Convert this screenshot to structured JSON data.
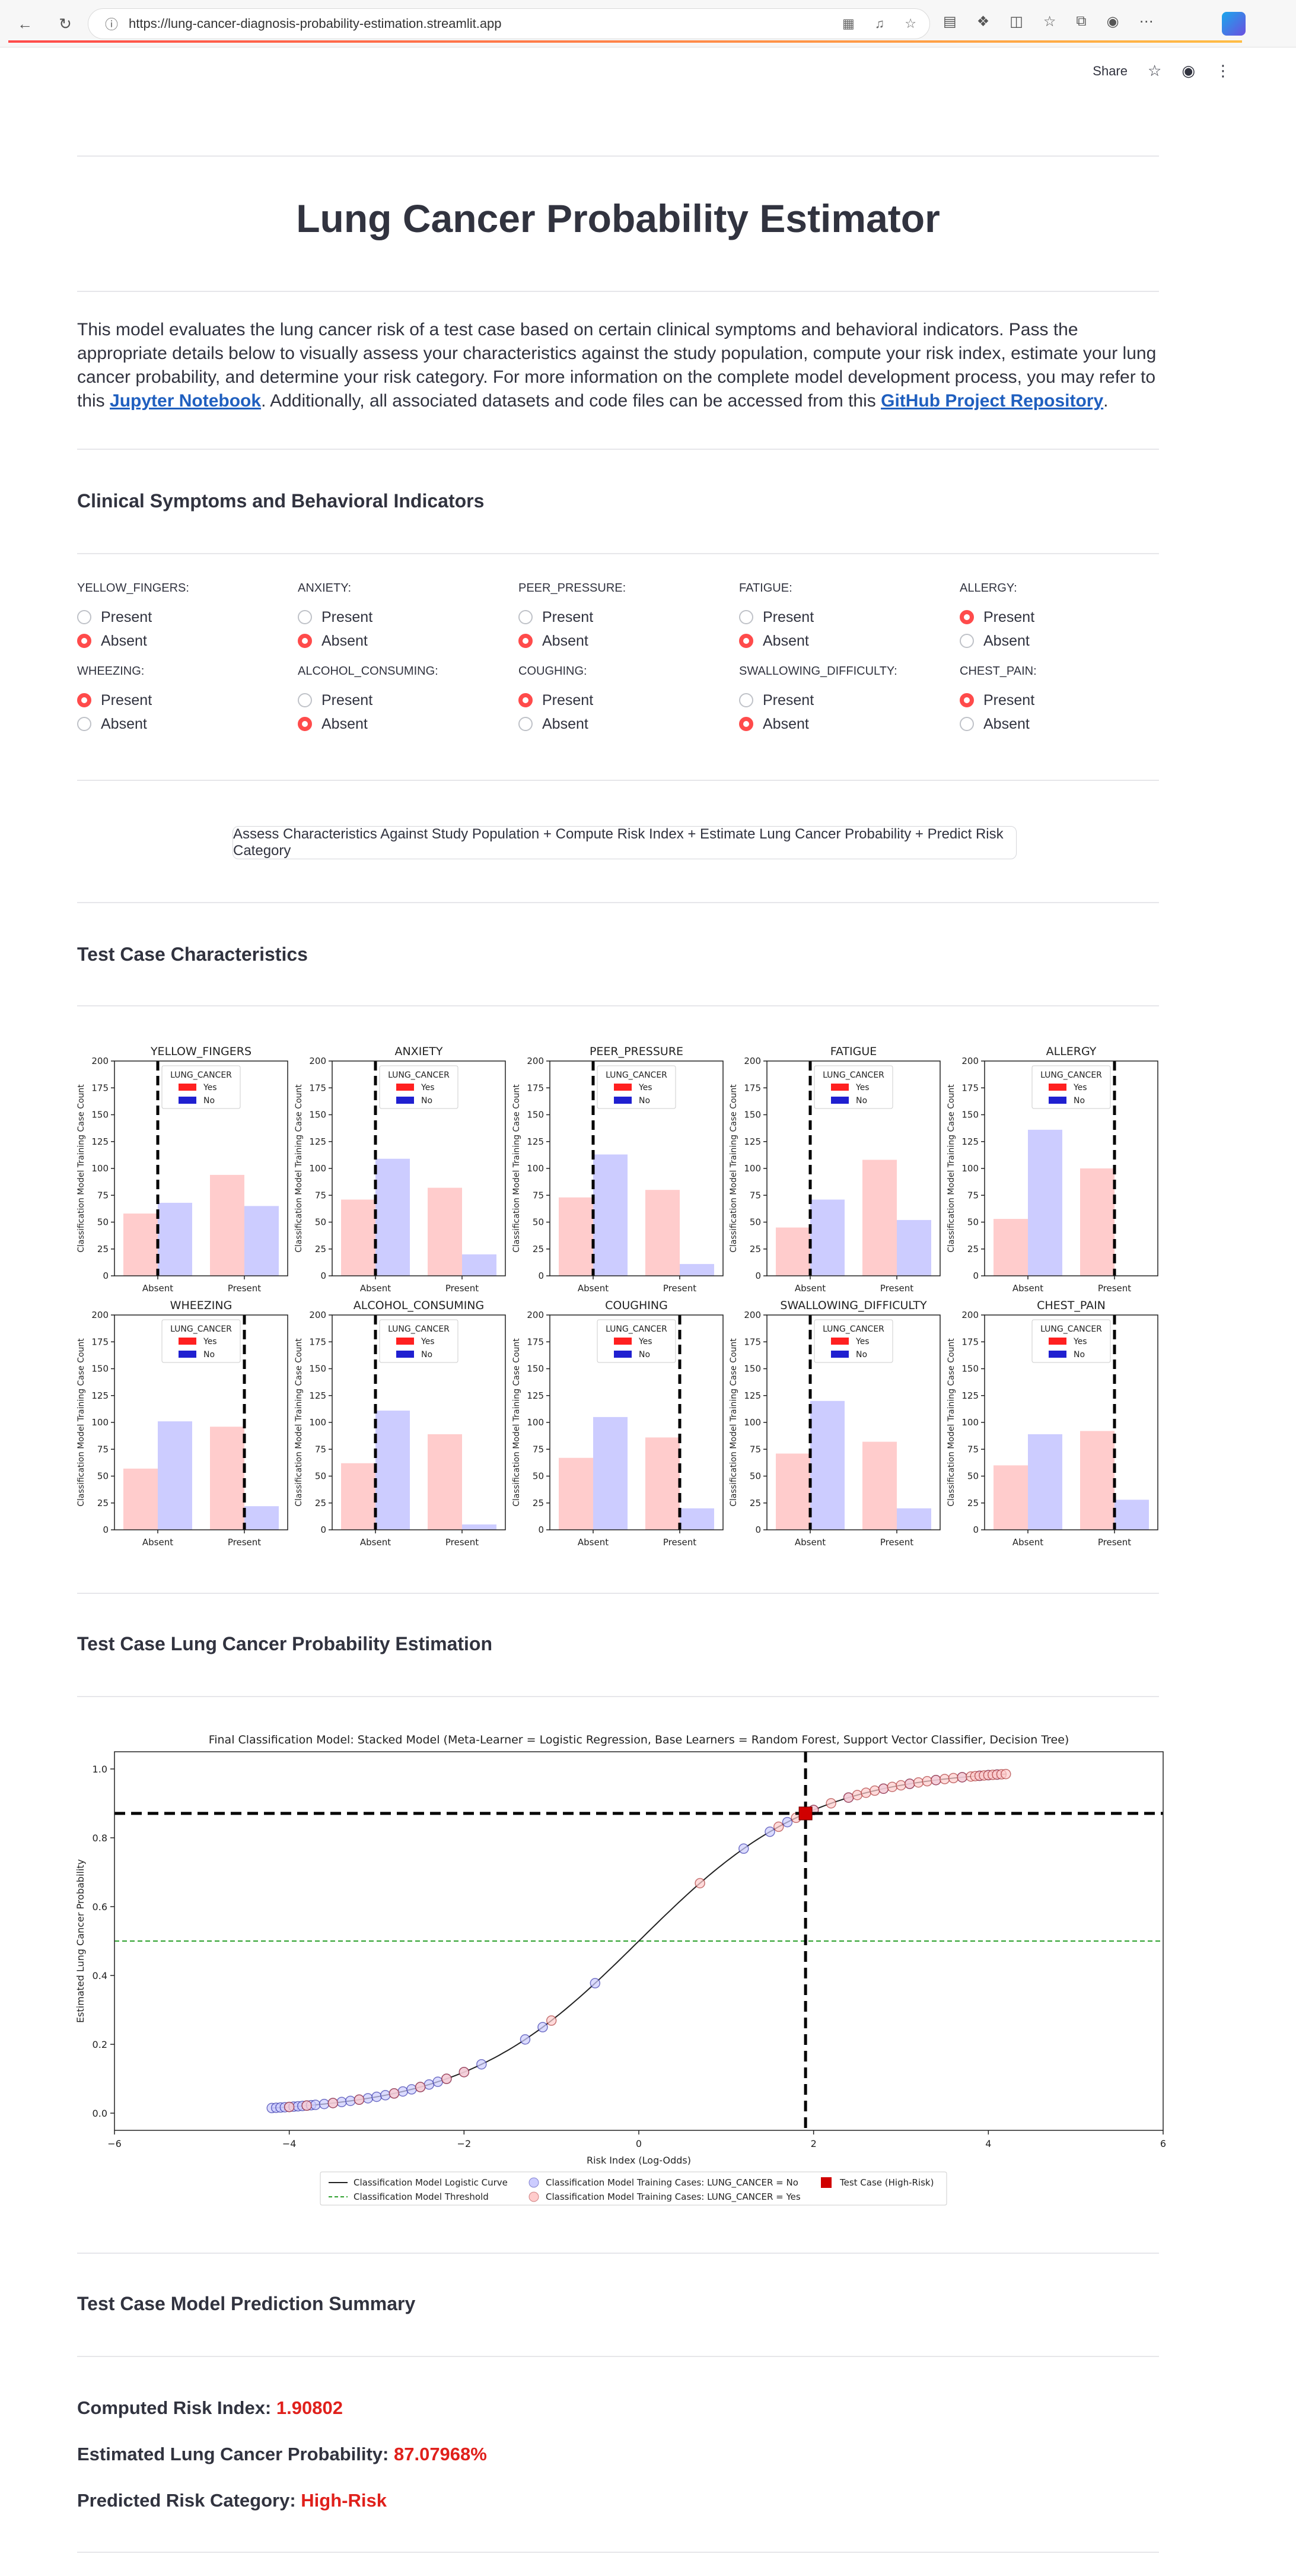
{
  "browser": {
    "url": "https://lung-cancer-diagnosis-probability-estimation.streamlit.app"
  },
  "app_header": {
    "share_label": "Share"
  },
  "title": "Lung Cancer Probability Estimator",
  "intro": {
    "text1": "This model evaluates the lung cancer risk of a test case based on certain clinical symptoms and behavioral indicators. Pass the appropriate details below to visually assess your characteristics against the study population, compute your risk index, estimate your lung cancer probability, and determine your risk category. For more information on the complete model development process, you may refer to this ",
    "link1": "Jupyter Notebook",
    "text2": ". Additionally, all associated datasets and code files can be accessed from this ",
    "link2": "GitHub Project Repository",
    "text3": "."
  },
  "sections": {
    "clinical": "Clinical Symptoms and Behavioral Indicators",
    "characteristics": "Test Case Characteristics",
    "estimation": "Test Case Lung Cancer Probability Estimation",
    "summary": "Test Case Model Prediction Summary"
  },
  "radio_options": [
    "Present",
    "Absent"
  ],
  "radios": [
    {
      "label": "YELLOW_FINGERS:",
      "selected": "Absent"
    },
    {
      "label": "ANXIETY:",
      "selected": "Absent"
    },
    {
      "label": "PEER_PRESSURE:",
      "selected": "Absent"
    },
    {
      "label": "FATIGUE:",
      "selected": "Absent"
    },
    {
      "label": "ALLERGY:",
      "selected": "Present"
    },
    {
      "label": "WHEEZING:",
      "selected": "Present"
    },
    {
      "label": "ALCOHOL_CONSUMING:",
      "selected": "Absent"
    },
    {
      "label": "COUGHING:",
      "selected": "Present"
    },
    {
      "label": "SWALLOWING_DIFFICULTY:",
      "selected": "Absent"
    },
    {
      "label": "CHEST_PAIN:",
      "selected": "Present"
    }
  ],
  "assess_button": "Assess Characteristics Against Study Population + Compute Risk Index + Estimate Lung Cancer Probability + Predict Risk Category",
  "colors": {
    "yes": "#ffcccc",
    "no": "#ccccff",
    "yes_legend": "#ff2020",
    "no_legend": "#2020d0",
    "accent": "#ff4b4b",
    "value_red": "#e0201b"
  },
  "chart_data": [
    {
      "type": "bar",
      "title": "Test Case Characteristics",
      "ylabel": "Classification Model Training Case Count",
      "ylim": [
        0,
        200
      ],
      "yticks": [
        0,
        25,
        50,
        75,
        100,
        125,
        150,
        175,
        200
      ],
      "categories": [
        "Absent",
        "Present"
      ],
      "legend_title": "LUNG_CANCER",
      "legend": [
        "Yes",
        "No"
      ],
      "panels": [
        {
          "name": "YELLOW_FINGERS",
          "yes": [
            58,
            94
          ],
          "no": [
            68,
            65
          ],
          "test": "Absent"
        },
        {
          "name": "ANXIETY",
          "yes": [
            71,
            82
          ],
          "no": [
            109,
            20
          ],
          "test": "Absent"
        },
        {
          "name": "PEER_PRESSURE",
          "yes": [
            73,
            80
          ],
          "no": [
            113,
            11
          ],
          "test": "Absent"
        },
        {
          "name": "FATIGUE",
          "yes": [
            45,
            108
          ],
          "no": [
            71,
            52
          ],
          "test": "Absent"
        },
        {
          "name": "ALLERGY",
          "yes": [
            53,
            100
          ],
          "no": [
            136,
            0
          ],
          "test": "Present"
        },
        {
          "name": "WHEEZING",
          "yes": [
            57,
            96
          ],
          "no": [
            101,
            22
          ],
          "test": "Present"
        },
        {
          "name": "ALCOHOL_CONSUMING",
          "yes": [
            62,
            89
          ],
          "no": [
            111,
            5
          ],
          "test": "Absent"
        },
        {
          "name": "COUGHING",
          "yes": [
            67,
            86
          ],
          "no": [
            105,
            20
          ],
          "test": "Present"
        },
        {
          "name": "SWALLOWING_DIFFICULTY",
          "yes": [
            71,
            82
          ],
          "no": [
            120,
            20
          ],
          "test": "Absent"
        },
        {
          "name": "CHEST_PAIN",
          "yes": [
            60,
            92
          ],
          "no": [
            89,
            28
          ],
          "test": "Present"
        }
      ]
    },
    {
      "type": "line",
      "title": "Final Classification Model: Stacked Model (Meta-Learner = Logistic Regression, Base Learners = Random Forest, Support Vector Classifier, Decision Tree)",
      "xlabel": "Risk Index (Log-Odds)",
      "ylabel": "Estimated Lung Cancer Probability",
      "xlim": [
        -6,
        6
      ],
      "ylim": [
        -0.05,
        1.05
      ],
      "xticks": [
        -6,
        -4,
        -2,
        0,
        2,
        4,
        6
      ],
      "yticks": [
        0.0,
        0.2,
        0.4,
        0.6,
        0.8,
        1.0
      ],
      "threshold": 0.5,
      "test_case": {
        "x": 1.90802,
        "y": 0.8708
      },
      "no_points": [
        -4.2,
        -4.15,
        -4.1,
        -4.05,
        -4.0,
        -3.95,
        -3.9,
        -3.85,
        -3.8,
        -3.75,
        -3.7,
        -3.6,
        -3.5,
        -3.4,
        -3.3,
        -3.2,
        -3.1,
        -3.0,
        -2.9,
        -2.8,
        -2.7,
        -2.6,
        -2.5,
        -2.4,
        -2.3,
        -2.2,
        -2.0,
        -1.8,
        -1.3,
        -1.1,
        -0.5,
        1.2,
        1.5,
        1.7,
        2.0,
        2.4,
        2.8,
        3.1,
        3.4,
        3.7,
        3.9,
        4.0,
        4.1
      ],
      "yes_points": [
        -4.0,
        -3.8,
        -3.5,
        -3.2,
        -2.8,
        -2.5,
        -2.2,
        -2.0,
        -1.0,
        0.7,
        1.6,
        1.8,
        2.0,
        2.2,
        2.4,
        2.5,
        2.6,
        2.7,
        2.8,
        2.9,
        3.0,
        3.1,
        3.2,
        3.3,
        3.4,
        3.5,
        3.6,
        3.7,
        3.8,
        3.85,
        3.9,
        3.95,
        4.0,
        4.05,
        4.1,
        4.15,
        4.2
      ],
      "legend": {
        "curve": "Classification Model Logistic Curve",
        "threshold": "Classification Model Threshold",
        "no": "Classification Model Training Cases: LUNG_CANCER = No",
        "yes": "Classification Model Training Cases: LUNG_CANCER = Yes",
        "test": "Test Case (High-Risk)"
      }
    }
  ],
  "summary": {
    "risk_index_label": "Computed Risk Index: ",
    "risk_index_value": "1.90802",
    "probability_label": "Estimated Lung Cancer Probability: ",
    "probability_value": "87.07968%",
    "category_label": "Predicted Risk Category: ",
    "category_value": "High-Risk"
  }
}
